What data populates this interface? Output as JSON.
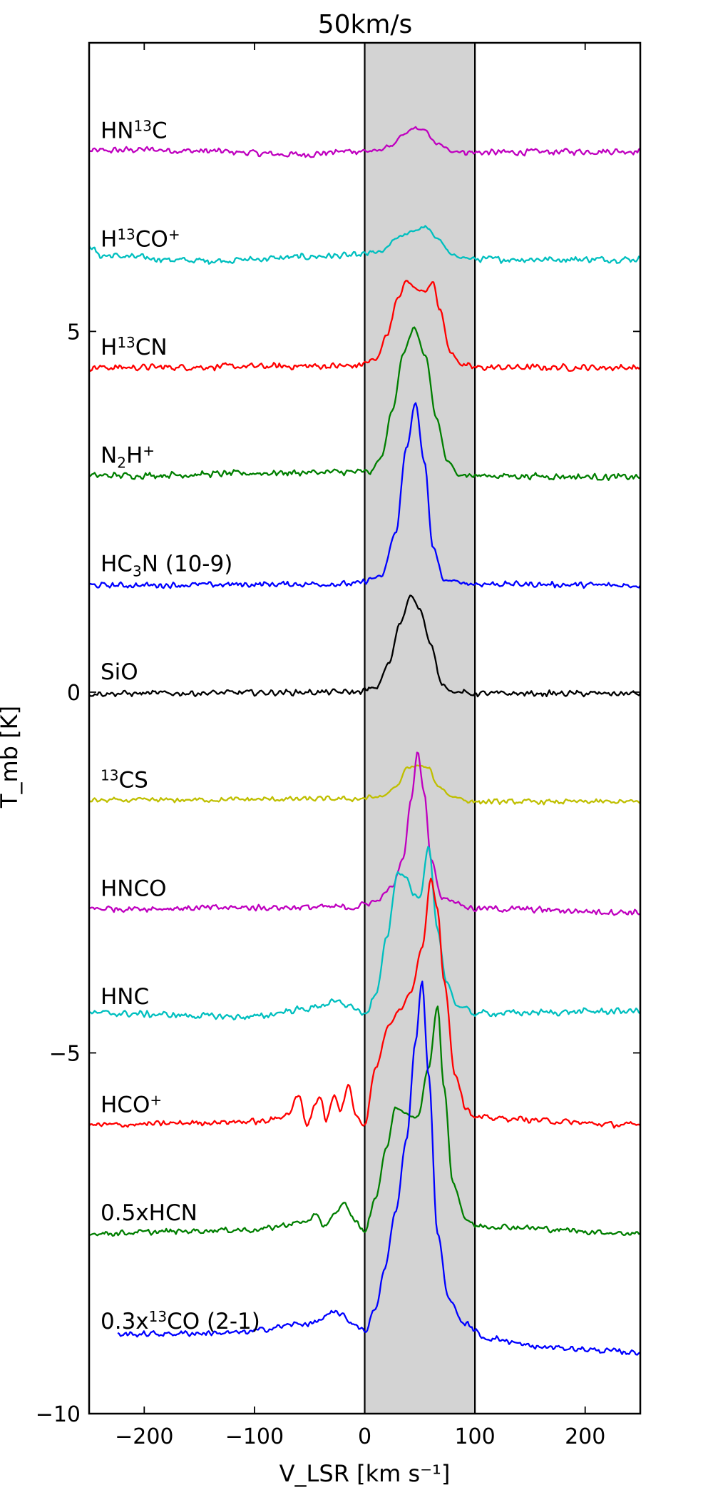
{
  "chart_data": {
    "type": "line",
    "title": "50km/s",
    "xlabel": "V_LSR [km s⁻¹]",
    "ylabel": "T_mb [K]",
    "xlim": [
      -250,
      250
    ],
    "ylim": [
      -10,
      9
    ],
    "grid": false,
    "legend": "none",
    "x_ticks": [
      -200,
      -100,
      0,
      100,
      200
    ],
    "x_tick_labels": [
      "−200",
      "−100",
      "0",
      "100",
      "200"
    ],
    "y_ticks": [
      -10,
      -5,
      0,
      5
    ],
    "y_tick_labels": [
      "−10",
      "−5",
      "0",
      "5"
    ],
    "shaded_band": {
      "from": 0,
      "to": 100,
      "color": "#d3d3d3"
    },
    "series": [
      {
        "name": "HN¹³C",
        "color": "#bf00bf",
        "baseline": 7.5,
        "noise": 0.045,
        "label_parts": [
          {
            "t": "HN"
          },
          {
            "t": "13",
            "sup": true
          },
          {
            "t": "C"
          }
        ],
        "profile": [
          [
            -250,
            7.5
          ],
          [
            -200,
            7.52
          ],
          [
            -150,
            7.5
          ],
          [
            -60,
            7.45
          ],
          [
            -10,
            7.5
          ],
          [
            10,
            7.5
          ],
          [
            25,
            7.58
          ],
          [
            35,
            7.72
          ],
          [
            45,
            7.82
          ],
          [
            55,
            7.78
          ],
          [
            65,
            7.6
          ],
          [
            80,
            7.5
          ],
          [
            100,
            7.48
          ],
          [
            250,
            7.5
          ]
        ]
      },
      {
        "name": "H¹³CO⁺",
        "color": "#00bfbf",
        "baseline": 6.0,
        "noise": 0.045,
        "label_parts": [
          {
            "t": "H"
          },
          {
            "t": "13",
            "sup": true
          },
          {
            "t": "CO"
          },
          {
            "t": "+",
            "sup": true
          }
        ],
        "profile": [
          [
            -250,
            6.2
          ],
          [
            -240,
            6.05
          ],
          [
            -150,
            5.98
          ],
          [
            -10,
            6.05
          ],
          [
            15,
            6.1
          ],
          [
            30,
            6.3
          ],
          [
            45,
            6.4
          ],
          [
            55,
            6.45
          ],
          [
            65,
            6.3
          ],
          [
            80,
            6.05
          ],
          [
            100,
            6.0
          ],
          [
            200,
            6.0
          ],
          [
            250,
            6.0
          ]
        ]
      },
      {
        "name": "H¹³CN",
        "color": "#ff0000",
        "baseline": 4.5,
        "noise": 0.045,
        "label_parts": [
          {
            "t": "H"
          },
          {
            "t": "13",
            "sup": true
          },
          {
            "t": "CN"
          }
        ],
        "profile": [
          [
            -250,
            4.5
          ],
          [
            -10,
            4.52
          ],
          [
            10,
            4.6
          ],
          [
            20,
            4.95
          ],
          [
            30,
            5.45
          ],
          [
            38,
            5.7
          ],
          [
            46,
            5.6
          ],
          [
            55,
            5.55
          ],
          [
            62,
            5.7
          ],
          [
            68,
            5.3
          ],
          [
            78,
            4.7
          ],
          [
            90,
            4.52
          ],
          [
            100,
            4.5
          ],
          [
            250,
            4.5
          ]
        ]
      },
      {
        "name": "N₂H⁺",
        "color": "#007f00",
        "baseline": 3.0,
        "noise": 0.045,
        "label_parts": [
          {
            "t": "N"
          },
          {
            "t": "2",
            "sub": true
          },
          {
            "t": "H"
          },
          {
            "t": "+",
            "sup": true
          }
        ],
        "profile": [
          [
            -250,
            3.0
          ],
          [
            -10,
            3.05
          ],
          [
            5,
            3.05
          ],
          [
            15,
            3.25
          ],
          [
            25,
            3.9
          ],
          [
            35,
            4.7
          ],
          [
            45,
            5.05
          ],
          [
            55,
            4.65
          ],
          [
            65,
            3.8
          ],
          [
            75,
            3.2
          ],
          [
            85,
            3.02
          ],
          [
            100,
            3.0
          ],
          [
            250,
            2.98
          ]
        ]
      },
      {
        "name": "HC₃N (10-9)",
        "color": "#0000ff",
        "baseline": 1.5,
        "noise": 0.04,
        "label_parts": [
          {
            "t": "HC"
          },
          {
            "t": "3",
            "sub": true
          },
          {
            "t": "N (10-9)"
          }
        ],
        "profile": [
          [
            -250,
            1.48
          ],
          [
            -10,
            1.5
          ],
          [
            15,
            1.6
          ],
          [
            28,
            2.2
          ],
          [
            38,
            3.4
          ],
          [
            46,
            4.0
          ],
          [
            54,
            3.2
          ],
          [
            62,
            2.0
          ],
          [
            72,
            1.55
          ],
          [
            100,
            1.5
          ],
          [
            250,
            1.48
          ]
        ]
      },
      {
        "name": "SiO",
        "color": "#000000",
        "baseline": 0.0,
        "noise": 0.04,
        "label_parts": [
          {
            "t": "SiO"
          }
        ],
        "profile": [
          [
            -250,
            -0.02
          ],
          [
            -10,
            0.0
          ],
          [
            10,
            0.05
          ],
          [
            22,
            0.4
          ],
          [
            32,
            0.95
          ],
          [
            42,
            1.35
          ],
          [
            50,
            1.15
          ],
          [
            60,
            0.65
          ],
          [
            70,
            0.12
          ],
          [
            80,
            0.0
          ],
          [
            100,
            -0.02
          ],
          [
            250,
            -0.02
          ]
        ]
      },
      {
        "name": "¹³CS",
        "color": "#bfbf00",
        "baseline": -1.5,
        "noise": 0.035,
        "label_parts": [
          {
            "t": "13",
            "sup": true
          },
          {
            "t": "CS"
          }
        ],
        "profile": [
          [
            -250,
            -1.5
          ],
          [
            -10,
            -1.48
          ],
          [
            15,
            -1.45
          ],
          [
            30,
            -1.3
          ],
          [
            38,
            -1.05
          ],
          [
            48,
            -1.02
          ],
          [
            58,
            -1.05
          ],
          [
            66,
            -1.3
          ],
          [
            80,
            -1.45
          ],
          [
            100,
            -1.52
          ],
          [
            250,
            -1.52
          ]
        ]
      },
      {
        "name": "HNCO",
        "color": "#bf00bf",
        "baseline": -3.0,
        "noise": 0.045,
        "label_parts": [
          {
            "t": "HNCO"
          }
        ],
        "profile": [
          [
            -250,
            -3.0
          ],
          [
            -10,
            -2.98
          ],
          [
            10,
            -2.9
          ],
          [
            25,
            -2.7
          ],
          [
            35,
            -2.3
          ],
          [
            42,
            -1.5
          ],
          [
            48,
            -0.82
          ],
          [
            54,
            -1.4
          ],
          [
            60,
            -2.3
          ],
          [
            70,
            -2.85
          ],
          [
            100,
            -3.0
          ],
          [
            250,
            -3.05
          ]
        ]
      },
      {
        "name": "HNC",
        "color": "#00bfbf",
        "baseline": -4.5,
        "noise": 0.045,
        "label_parts": [
          {
            "t": "HNC"
          }
        ],
        "profile": [
          [
            -250,
            -4.45
          ],
          [
            -100,
            -4.5
          ],
          [
            -60,
            -4.4
          ],
          [
            -25,
            -4.3
          ],
          [
            -12,
            -4.35
          ],
          [
            -5,
            -4.42
          ],
          [
            0,
            -4.5
          ],
          [
            10,
            -4.2
          ],
          [
            20,
            -3.4
          ],
          [
            30,
            -2.5
          ],
          [
            38,
            -2.55
          ],
          [
            44,
            -2.8
          ],
          [
            50,
            -2.85
          ],
          [
            58,
            -2.15
          ],
          [
            66,
            -3.3
          ],
          [
            74,
            -4.0
          ],
          [
            84,
            -4.35
          ],
          [
            100,
            -4.45
          ],
          [
            250,
            -4.42
          ]
        ]
      },
      {
        "name": "HCO⁺",
        "color": "#ff0000",
        "baseline": -6.0,
        "noise": 0.04,
        "label_parts": [
          {
            "t": "HCO"
          },
          {
            "t": "+",
            "sup": true
          }
        ],
        "profile": [
          [
            -250,
            -6.0
          ],
          [
            -90,
            -5.95
          ],
          [
            -70,
            -5.85
          ],
          [
            -60,
            -5.6
          ],
          [
            -52,
            -6.0
          ],
          [
            -45,
            -5.7
          ],
          [
            -40,
            -5.6
          ],
          [
            -35,
            -5.95
          ],
          [
            -28,
            -5.6
          ],
          [
            -22,
            -5.8
          ],
          [
            -15,
            -5.45
          ],
          [
            -8,
            -5.85
          ],
          [
            0,
            -6.0
          ],
          [
            10,
            -5.2
          ],
          [
            22,
            -4.6
          ],
          [
            32,
            -4.4
          ],
          [
            42,
            -4.15
          ],
          [
            52,
            -3.55
          ],
          [
            60,
            -2.6
          ],
          [
            66,
            -3.0
          ],
          [
            72,
            -4.0
          ],
          [
            82,
            -5.3
          ],
          [
            92,
            -5.75
          ],
          [
            100,
            -5.9
          ],
          [
            250,
            -6.0
          ]
        ]
      },
      {
        "name": "0.5xHCN",
        "color": "#007f00",
        "baseline": -7.5,
        "noise": 0.04,
        "label_parts": [
          {
            "t": "0.5xHCN"
          }
        ],
        "profile": [
          [
            -250,
            -7.5
          ],
          [
            -100,
            -7.45
          ],
          [
            -55,
            -7.35
          ],
          [
            -45,
            -7.25
          ],
          [
            -38,
            -7.4
          ],
          [
            -25,
            -7.2
          ],
          [
            -18,
            -7.1
          ],
          [
            -10,
            -7.3
          ],
          [
            0,
            -7.48
          ],
          [
            10,
            -7.0
          ],
          [
            20,
            -6.3
          ],
          [
            28,
            -5.75
          ],
          [
            38,
            -5.85
          ],
          [
            48,
            -5.9
          ],
          [
            58,
            -5.2
          ],
          [
            66,
            -4.35
          ],
          [
            72,
            -5.5
          ],
          [
            80,
            -6.8
          ],
          [
            92,
            -7.3
          ],
          [
            100,
            -7.4
          ],
          [
            250,
            -7.5
          ]
        ]
      },
      {
        "name": "0.3x¹³CO (2-1)",
        "color": "#0000ff",
        "baseline": -9.0,
        "noise": 0.04,
        "label_parts": [
          {
            "t": "0.3x"
          },
          {
            "t": "13",
            "sup": true
          },
          {
            "t": "CO (2-1)"
          }
        ],
        "profile": [
          [
            -224,
            -8.9
          ],
          [
            -120,
            -8.88
          ],
          [
            -50,
            -8.75
          ],
          [
            -25,
            -8.6
          ],
          [
            -10,
            -8.75
          ],
          [
            0,
            -8.85
          ],
          [
            10,
            -8.55
          ],
          [
            18,
            -8.0
          ],
          [
            28,
            -7.2
          ],
          [
            38,
            -6.2
          ],
          [
            46,
            -4.85
          ],
          [
            52,
            -4.0
          ],
          [
            58,
            -5.3
          ],
          [
            66,
            -7.5
          ],
          [
            76,
            -8.4
          ],
          [
            90,
            -8.75
          ],
          [
            110,
            -8.95
          ],
          [
            160,
            -9.08
          ],
          [
            250,
            -9.15
          ]
        ]
      }
    ]
  }
}
